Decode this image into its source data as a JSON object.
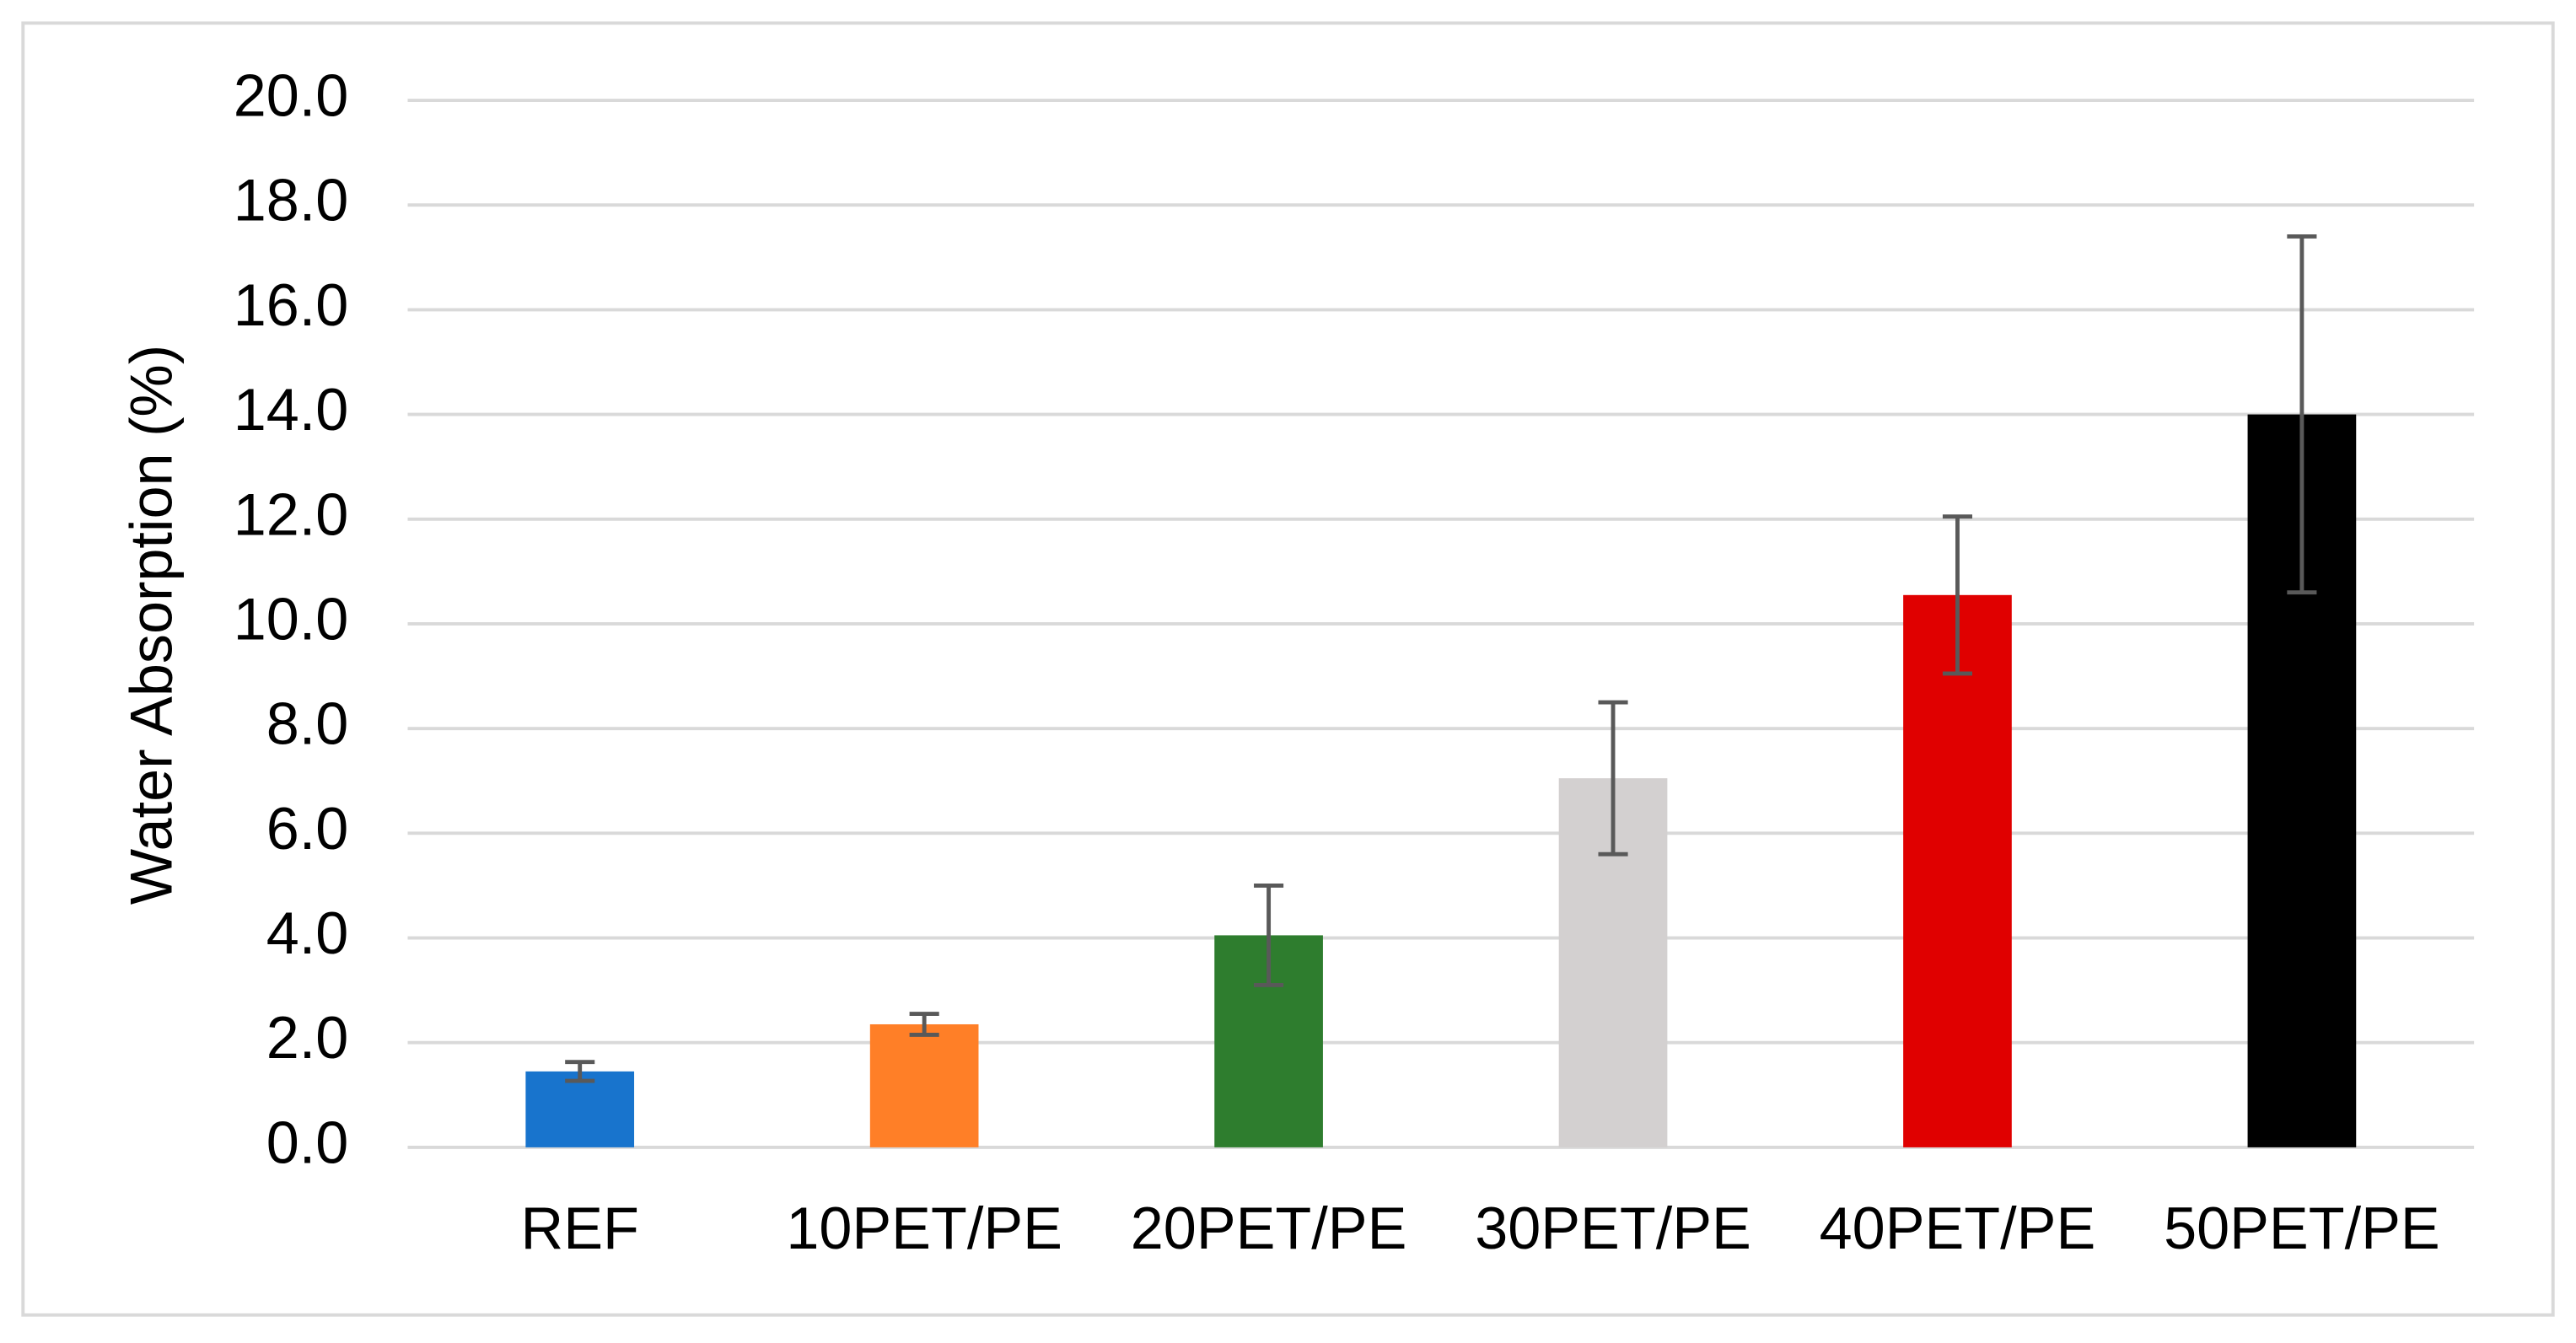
{
  "chart_data": {
    "type": "bar",
    "y_label": "Water Absorption (%)",
    "categories": [
      "REF",
      "10PET/PE",
      "20PET/PE",
      "30PET/PE",
      "40PET/PE",
      "50PET/PE"
    ],
    "values": [
      1.45,
      2.35,
      4.05,
      7.05,
      10.55,
      14.0
    ],
    "errors": [
      0.18,
      0.2,
      0.95,
      1.45,
      1.5,
      3.4
    ],
    "colors": [
      "#1874cd",
      "#ff7f27",
      "#2e7d2e",
      "#d3d0d0",
      "#e00000",
      "#000000"
    ],
    "error_color": "#595959",
    "ylim": [
      0,
      20
    ],
    "yticks": [
      {
        "value": 0,
        "label": "0.0"
      },
      {
        "value": 2,
        "label": "2.0"
      },
      {
        "value": 4,
        "label": "4.0"
      },
      {
        "value": 6,
        "label": "6.0"
      },
      {
        "value": 8,
        "label": "8.0"
      },
      {
        "value": 10,
        "label": "10.0"
      },
      {
        "value": 12,
        "label": "12.0"
      },
      {
        "value": 14,
        "label": "14.0"
      },
      {
        "value": 16,
        "label": "16.0"
      },
      {
        "value": 18,
        "label": "18.0"
      },
      {
        "value": 20,
        "label": "20.0"
      }
    ],
    "grid": true
  }
}
